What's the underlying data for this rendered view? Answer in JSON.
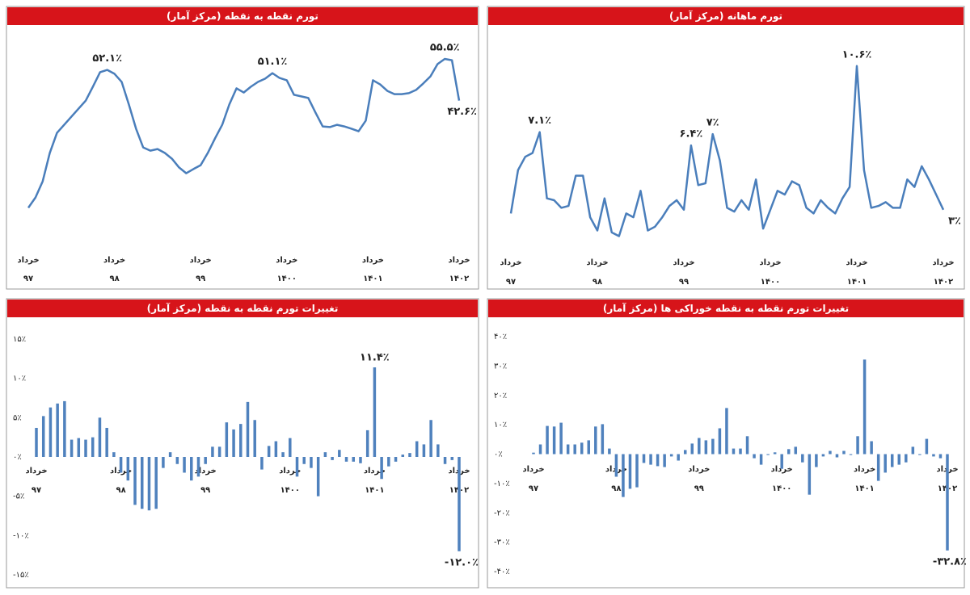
{
  "chart_data": [
    {
      "type": "line",
      "title": "تورم نقطه به نقطه (مرکز آمار)",
      "categories": [
        "خرداد",
        null,
        null,
        null,
        null,
        null,
        null,
        null,
        null,
        null,
        null,
        null,
        "خرداد",
        null,
        null,
        null,
        null,
        null,
        null,
        null,
        null,
        null,
        null,
        null,
        "خرداد",
        null,
        null,
        null,
        null,
        null,
        null,
        null,
        null,
        null,
        null,
        null,
        "خرداد",
        null,
        null,
        null,
        null,
        null,
        null,
        null,
        null,
        null,
        null,
        null,
        "خرداد",
        null,
        null,
        null,
        null,
        null,
        null,
        null,
        null,
        null,
        null,
        null,
        "خرداد"
      ],
      "category_years": [
        "۹۷",
        null,
        null,
        null,
        null,
        null,
        null,
        null,
        null,
        null,
        null,
        null,
        "۹۸",
        null,
        null,
        null,
        null,
        null,
        null,
        null,
        null,
        null,
        null,
        null,
        "۹۹",
        null,
        null,
        null,
        null,
        null,
        null,
        null,
        null,
        null,
        null,
        null,
        "۱۴۰۰",
        null,
        null,
        null,
        null,
        null,
        null,
        null,
        null,
        null,
        null,
        null,
        "۱۴۰۱",
        null,
        null,
        null,
        null,
        null,
        null,
        null,
        null,
        null,
        null,
        null,
        "۱۴۰۲"
      ],
      "values": [
        9.4,
        12.6,
        17.6,
        26.4,
        32.6,
        35.1,
        37.6,
        40.1,
        42.6,
        46.9,
        51.4,
        52.1,
        50.9,
        48.4,
        41.4,
        33.9,
        28.1,
        27.1,
        27.6,
        26.4,
        24.6,
        21.9,
        20.1,
        21.4,
        22.6,
        26.4,
        30.9,
        35.1,
        41.4,
        46.4,
        45.1,
        46.9,
        48.4,
        49.4,
        51.1,
        49.6,
        48.9,
        44.4,
        43.9,
        43.4,
        38.9,
        34.6,
        34.4,
        35.1,
        34.6,
        33.9,
        33.1,
        36.4,
        48.9,
        47.6,
        45.6,
        44.6,
        44.6,
        44.9,
        45.9,
        47.9,
        50.1,
        53.9,
        55.5,
        55.1,
        42.6
      ],
      "value_labels": [
        null,
        null,
        null,
        null,
        null,
        null,
        null,
        null,
        null,
        null,
        null,
        "۵۲.۱٪",
        null,
        null,
        null,
        null,
        null,
        null,
        null,
        null,
        null,
        null,
        null,
        null,
        null,
        null,
        null,
        null,
        null,
        null,
        null,
        null,
        null,
        null,
        "۵۱.۱٪",
        null,
        null,
        null,
        null,
        null,
        null,
        null,
        null,
        null,
        null,
        null,
        null,
        null,
        null,
        null,
        null,
        null,
        null,
        null,
        null,
        null,
        null,
        null,
        "۵۵.۵٪",
        null,
        "۴۲.۶٪"
      ],
      "color": "#4a7ebb",
      "ylim": [
        0,
        60
      ],
      "grid": false
    },
    {
      "type": "line",
      "title": "تورم ماهانه (مرکز آمار)",
      "categories": [
        "خرداد",
        null,
        null,
        null,
        null,
        null,
        null,
        null,
        null,
        null,
        null,
        null,
        "خرداد",
        null,
        null,
        null,
        null,
        null,
        null,
        null,
        null,
        null,
        null,
        null,
        "خرداد",
        null,
        null,
        null,
        null,
        null,
        null,
        null,
        null,
        null,
        null,
        null,
        "خرداد",
        null,
        null,
        null,
        null,
        null,
        null,
        null,
        null,
        null,
        null,
        null,
        "خرداد",
        null,
        null,
        null,
        null,
        null,
        null,
        null,
        null,
        null,
        null,
        null,
        "خرداد"
      ],
      "category_years": [
        "۹۷",
        null,
        null,
        null,
        null,
        null,
        null,
        null,
        null,
        null,
        null,
        null,
        "۹۸",
        null,
        null,
        null,
        null,
        null,
        null,
        null,
        null,
        null,
        null,
        null,
        "۹۹",
        null,
        null,
        null,
        null,
        null,
        null,
        null,
        null,
        null,
        null,
        null,
        "۱۴۰۰",
        null,
        null,
        null,
        null,
        null,
        null,
        null,
        null,
        null,
        null,
        null,
        "۱۴۰۱",
        null,
        null,
        null,
        null,
        null,
        null,
        null,
        null,
        null,
        null,
        null,
        "۱۴۰۲"
      ],
      "values": [
        2.8,
        5.1,
        5.8,
        6.0,
        7.1,
        3.6,
        3.5,
        3.1,
        3.2,
        4.8,
        4.8,
        2.6,
        1.9,
        3.6,
        1.8,
        1.6,
        2.8,
        2.6,
        4.0,
        1.9,
        2.1,
        2.6,
        3.2,
        3.5,
        3.0,
        6.4,
        4.3,
        4.4,
        7.0,
        5.6,
        3.1,
        2.9,
        3.5,
        3.0,
        4.6,
        2.0,
        3.0,
        4.0,
        3.8,
        4.5,
        4.3,
        3.1,
        2.8,
        3.5,
        3.1,
        2.8,
        3.6,
        4.2,
        10.6,
        5.1,
        3.1,
        3.2,
        3.4,
        3.1,
        3.1,
        4.6,
        4.2,
        5.3,
        4.6,
        3.8,
        3.0
      ],
      "value_labels": [
        null,
        null,
        null,
        null,
        "۷.۱٪",
        null,
        null,
        null,
        null,
        null,
        null,
        null,
        null,
        null,
        null,
        null,
        null,
        null,
        null,
        null,
        null,
        null,
        null,
        null,
        null,
        "۶.۴٪",
        null,
        null,
        "۷٪",
        null,
        null,
        null,
        null,
        null,
        null,
        null,
        null,
        null,
        null,
        null,
        null,
        null,
        null,
        null,
        null,
        null,
        null,
        null,
        "۱۰.۶٪",
        null,
        null,
        null,
        null,
        null,
        null,
        null,
        null,
        null,
        null,
        null,
        "۳٪"
      ],
      "color": "#4a7ebb",
      "ylim": [
        0,
        12
      ],
      "grid": false
    },
    {
      "type": "bar",
      "title": "تغییرات تورم نقطه به نقطه (مرکز آمار)",
      "categories": [
        "خرداد",
        null,
        null,
        null,
        null,
        null,
        null,
        null,
        null,
        null,
        null,
        null,
        "خرداد",
        null,
        null,
        null,
        null,
        null,
        null,
        null,
        null,
        null,
        null,
        null,
        "خرداد",
        null,
        null,
        null,
        null,
        null,
        null,
        null,
        null,
        null,
        null,
        null,
        "خرداد",
        null,
        null,
        null,
        null,
        null,
        null,
        null,
        null,
        null,
        null,
        null,
        "خرداد",
        null,
        null,
        null,
        null,
        null,
        null,
        null,
        null,
        null,
        null,
        null,
        "خرداد"
      ],
      "category_years": [
        "۹۷",
        null,
        null,
        null,
        null,
        null,
        null,
        null,
        null,
        null,
        null,
        null,
        "۹۸",
        null,
        null,
        null,
        null,
        null,
        null,
        null,
        null,
        null,
        null,
        null,
        "۹۹",
        null,
        null,
        null,
        null,
        null,
        null,
        null,
        null,
        null,
        null,
        null,
        "۱۴۰۰",
        null,
        null,
        null,
        null,
        null,
        null,
        null,
        null,
        null,
        null,
        null,
        "۱۴۰۱",
        null,
        null,
        null,
        null,
        null,
        null,
        null,
        null,
        null,
        null,
        null,
        "۱۴۰۲"
      ],
      "values": [
        3.7,
        5.2,
        6.3,
        6.8,
        7.1,
        2.2,
        2.4,
        2.2,
        2.5,
        5.0,
        3.7,
        0.6,
        -2.0,
        -3.0,
        -6.1,
        -6.6,
        -6.8,
        -6.6,
        -1.4,
        0.6,
        -0.9,
        -2.0,
        -3.0,
        -2.5,
        -0.9,
        1.3,
        1.3,
        4.4,
        3.5,
        4.2,
        7.0,
        4.7,
        -1.6,
        1.4,
        2.0,
        0.6,
        2.4,
        -2.5,
        -0.9,
        -1.4,
        -5.0,
        0.6,
        -0.4,
        0.9,
        -0.6,
        -0.6,
        -0.8,
        3.4,
        11.4,
        -2.8,
        -1.2,
        -0.6,
        0.3,
        0.5,
        2.0,
        1.6,
        4.7,
        1.6,
        -0.9,
        -0.4,
        -12.0
      ],
      "value_labels": [
        null,
        null,
        null,
        null,
        null,
        null,
        null,
        null,
        null,
        null,
        null,
        null,
        null,
        null,
        null,
        null,
        null,
        null,
        null,
        null,
        null,
        null,
        null,
        null,
        null,
        null,
        null,
        null,
        null,
        null,
        null,
        null,
        null,
        null,
        null,
        null,
        null,
        null,
        null,
        null,
        null,
        null,
        null,
        null,
        null,
        null,
        null,
        null,
        "۱۱.۴٪",
        null,
        null,
        null,
        null,
        null,
        null,
        null,
        null,
        null,
        null,
        null,
        "-۱۲.۰٪"
      ],
      "color": "#4f81bd",
      "ylim": [
        -15,
        15
      ],
      "yticks": [
        {
          "value": 15,
          "label": "۱۵٪"
        },
        {
          "value": 10,
          "label": "۱۰٪"
        },
        {
          "value": 5,
          "label": "۵٪"
        },
        {
          "value": 0,
          "label": "۰٪"
        },
        {
          "value": -5,
          "label": "-۵٪"
        },
        {
          "value": -10,
          "label": "-۱۰٪"
        },
        {
          "value": -15,
          "label": "-۱۵٪"
        }
      ],
      "grid": false
    },
    {
      "type": "bar",
      "title": "تغییرات تورم نقطه به نقطه خوراکی ها (مرکز آمار)",
      "categories": [
        "خرداد",
        null,
        null,
        null,
        null,
        null,
        null,
        null,
        null,
        null,
        null,
        null,
        "خرداد",
        null,
        null,
        null,
        null,
        null,
        null,
        null,
        null,
        null,
        null,
        null,
        "خرداد",
        null,
        null,
        null,
        null,
        null,
        null,
        null,
        null,
        null,
        null,
        null,
        "خرداد",
        null,
        null,
        null,
        null,
        null,
        null,
        null,
        null,
        null,
        null,
        null,
        "خرداد",
        null,
        null,
        null,
        null,
        null,
        null,
        null,
        null,
        null,
        null,
        null,
        "خرداد"
      ],
      "category_years": [
        "۹۷",
        null,
        null,
        null,
        null,
        null,
        null,
        null,
        null,
        null,
        null,
        null,
        "۹۸",
        null,
        null,
        null,
        null,
        null,
        null,
        null,
        null,
        null,
        null,
        null,
        "۹۹",
        null,
        null,
        null,
        null,
        null,
        null,
        null,
        null,
        null,
        null,
        null,
        "۱۴۰۰",
        null,
        null,
        null,
        null,
        null,
        null,
        null,
        null,
        null,
        null,
        null,
        "۱۴۰۱",
        null,
        null,
        null,
        null,
        null,
        null,
        null,
        null,
        null,
        null,
        null,
        "۱۴۰۲"
      ],
      "values": [
        0.5,
        3.3,
        9.6,
        9.4,
        10.7,
        3.3,
        3.3,
        3.9,
        4.7,
        9.4,
        10.2,
        1.9,
        -7.7,
        -14.6,
        -11.8,
        -11.3,
        -3.0,
        -3.6,
        -4.1,
        -4.4,
        -0.8,
        -2.2,
        1.4,
        3.6,
        5.5,
        4.7,
        5.2,
        8.8,
        15.7,
        1.9,
        1.9,
        6.1,
        -1.4,
        -3.6,
        -0.3,
        0.6,
        -5.0,
        1.7,
        2.5,
        -2.8,
        -13.8,
        -4.4,
        -0.8,
        1.1,
        -1.1,
        1.1,
        -0.3,
        6.1,
        32.2,
        4.4,
        -9.1,
        -6.3,
        -4.4,
        -3.6,
        -2.8,
        2.5,
        -0.3,
        5.2,
        -0.8,
        -1.4,
        -32.8
      ],
      "value_labels": [
        null,
        null,
        null,
        null,
        null,
        null,
        null,
        null,
        null,
        null,
        null,
        null,
        null,
        null,
        null,
        null,
        null,
        null,
        null,
        null,
        null,
        null,
        null,
        null,
        null,
        null,
        null,
        null,
        null,
        null,
        null,
        null,
        null,
        null,
        null,
        null,
        null,
        null,
        null,
        null,
        null,
        null,
        null,
        null,
        null,
        null,
        null,
        null,
        null,
        null,
        null,
        null,
        null,
        null,
        null,
        null,
        null,
        null,
        null,
        null,
        "-۳۲.۸٪"
      ],
      "color": "#4f81bd",
      "ylim": [
        -40,
        40
      ],
      "yticks": [
        {
          "value": 40,
          "label": "۴۰٪"
        },
        {
          "value": 30,
          "label": "۳۰٪"
        },
        {
          "value": 20,
          "label": "۲۰٪"
        },
        {
          "value": 10,
          "label": "۱۰٪"
        },
        {
          "value": 0,
          "label": "۰٪"
        },
        {
          "value": -10,
          "label": "-۱۰٪"
        },
        {
          "value": -20,
          "label": "-۲۰٪"
        },
        {
          "value": -30,
          "label": "-۳۰٪"
        },
        {
          "value": -40,
          "label": "-۴۰٪"
        }
      ],
      "grid": false
    }
  ]
}
